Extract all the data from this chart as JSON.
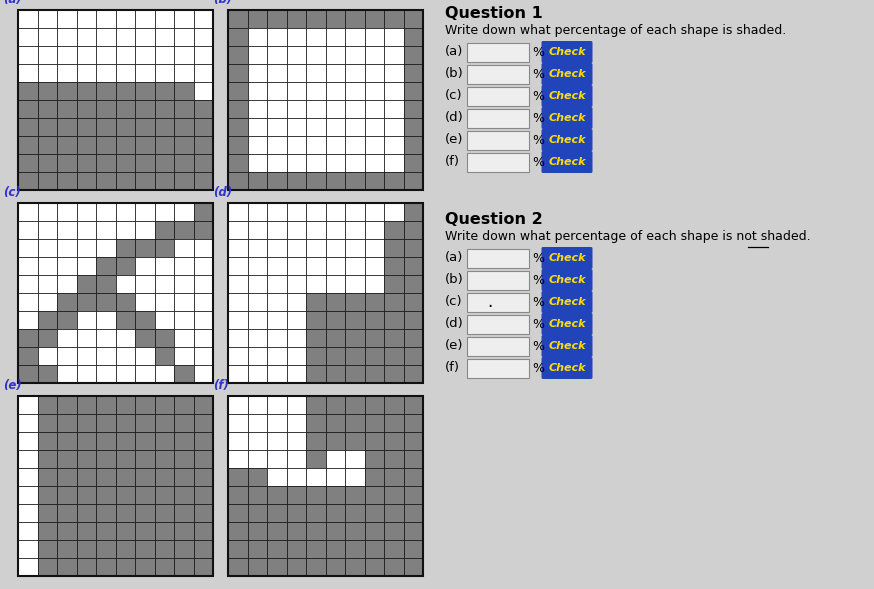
{
  "bg_color": "#d0d0d0",
  "shaded_color": "#808080",
  "white_color": "#ffffff",
  "grid_border_color": "#111111",
  "label_color": "#3333cc",
  "check_bg": "#2244bb",
  "check_text": "#ffdd00",
  "grids": {
    "a": [
      [
        0,
        0,
        0,
        0,
        0,
        0,
        0,
        0,
        0,
        0
      ],
      [
        0,
        0,
        0,
        0,
        0,
        0,
        0,
        0,
        0,
        0
      ],
      [
        0,
        0,
        0,
        0,
        0,
        0,
        0,
        0,
        0,
        0
      ],
      [
        0,
        0,
        0,
        0,
        0,
        0,
        0,
        0,
        0,
        0
      ],
      [
        1,
        1,
        1,
        1,
        1,
        1,
        1,
        1,
        1,
        0
      ],
      [
        1,
        1,
        1,
        1,
        1,
        1,
        1,
        1,
        1,
        1
      ],
      [
        1,
        1,
        1,
        1,
        1,
        1,
        1,
        1,
        1,
        1
      ],
      [
        1,
        1,
        1,
        1,
        1,
        1,
        1,
        1,
        1,
        1
      ],
      [
        1,
        1,
        1,
        1,
        1,
        1,
        1,
        1,
        1,
        1
      ],
      [
        1,
        1,
        1,
        1,
        1,
        1,
        1,
        1,
        1,
        1
      ]
    ],
    "b": [
      [
        1,
        1,
        1,
        1,
        1,
        1,
        1,
        1,
        1,
        1
      ],
      [
        1,
        0,
        0,
        0,
        0,
        0,
        0,
        0,
        0,
        1
      ],
      [
        1,
        0,
        0,
        0,
        0,
        0,
        0,
        0,
        0,
        1
      ],
      [
        1,
        0,
        0,
        0,
        0,
        0,
        0,
        0,
        0,
        1
      ],
      [
        1,
        0,
        0,
        0,
        0,
        0,
        0,
        0,
        0,
        1
      ],
      [
        1,
        0,
        0,
        0,
        0,
        0,
        0,
        0,
        0,
        1
      ],
      [
        1,
        0,
        0,
        0,
        0,
        0,
        0,
        0,
        0,
        1
      ],
      [
        1,
        0,
        0,
        0,
        0,
        0,
        0,
        0,
        0,
        1
      ],
      [
        1,
        0,
        0,
        0,
        0,
        0,
        0,
        0,
        0,
        1
      ],
      [
        1,
        1,
        1,
        1,
        1,
        1,
        1,
        1,
        1,
        1
      ]
    ],
    "c": [
      [
        0,
        0,
        0,
        0,
        0,
        0,
        0,
        0,
        0,
        1
      ],
      [
        0,
        0,
        0,
        0,
        0,
        0,
        0,
        1,
        1,
        1
      ],
      [
        0,
        0,
        0,
        0,
        0,
        1,
        1,
        1,
        0,
        0
      ],
      [
        0,
        0,
        0,
        0,
        1,
        1,
        0,
        0,
        0,
        0
      ],
      [
        0,
        0,
        0,
        1,
        1,
        0,
        0,
        0,
        0,
        0
      ],
      [
        0,
        0,
        1,
        1,
        1,
        1,
        0,
        0,
        0,
        0
      ],
      [
        0,
        1,
        1,
        0,
        0,
        1,
        1,
        0,
        0,
        0
      ],
      [
        1,
        1,
        0,
        0,
        0,
        0,
        1,
        1,
        0,
        0
      ],
      [
        1,
        0,
        0,
        0,
        0,
        0,
        0,
        1,
        0,
        0
      ],
      [
        1,
        1,
        0,
        0,
        0,
        0,
        0,
        0,
        1,
        0
      ]
    ],
    "d": [
      [
        0,
        0,
        0,
        0,
        0,
        0,
        0,
        0,
        0,
        1
      ],
      [
        0,
        0,
        0,
        0,
        0,
        0,
        0,
        0,
        1,
        1
      ],
      [
        0,
        0,
        0,
        0,
        0,
        0,
        0,
        0,
        1,
        1
      ],
      [
        0,
        0,
        0,
        0,
        0,
        0,
        0,
        0,
        1,
        1
      ],
      [
        0,
        0,
        0,
        0,
        0,
        0,
        0,
        0,
        1,
        1
      ],
      [
        0,
        0,
        0,
        0,
        1,
        1,
        1,
        1,
        1,
        1
      ],
      [
        0,
        0,
        0,
        0,
        1,
        1,
        1,
        1,
        1,
        1
      ],
      [
        0,
        0,
        0,
        0,
        1,
        1,
        1,
        1,
        1,
        1
      ],
      [
        0,
        0,
        0,
        0,
        1,
        1,
        1,
        1,
        1,
        1
      ],
      [
        0,
        0,
        0,
        0,
        1,
        1,
        1,
        1,
        1,
        1
      ]
    ],
    "e": [
      [
        0,
        1,
        1,
        1,
        1,
        1,
        1,
        1,
        1,
        1
      ],
      [
        0,
        1,
        1,
        1,
        1,
        1,
        1,
        1,
        1,
        1
      ],
      [
        0,
        1,
        1,
        1,
        1,
        1,
        1,
        1,
        1,
        1
      ],
      [
        0,
        1,
        1,
        1,
        1,
        1,
        1,
        1,
        1,
        1
      ],
      [
        0,
        1,
        1,
        1,
        1,
        1,
        1,
        1,
        1,
        1
      ],
      [
        0,
        1,
        1,
        1,
        1,
        1,
        1,
        1,
        1,
        1
      ],
      [
        0,
        1,
        1,
        1,
        1,
        1,
        1,
        1,
        1,
        1
      ],
      [
        0,
        1,
        1,
        1,
        1,
        1,
        1,
        1,
        1,
        1
      ],
      [
        0,
        1,
        1,
        1,
        1,
        1,
        1,
        1,
        1,
        1
      ],
      [
        0,
        1,
        1,
        1,
        1,
        1,
        1,
        1,
        1,
        1
      ]
    ],
    "f": [
      [
        0,
        0,
        0,
        0,
        1,
        1,
        1,
        1,
        1,
        1
      ],
      [
        0,
        0,
        0,
        0,
        1,
        1,
        1,
        1,
        1,
        1
      ],
      [
        0,
        0,
        0,
        0,
        1,
        1,
        1,
        1,
        1,
        1
      ],
      [
        0,
        0,
        0,
        0,
        1,
        0,
        0,
        1,
        1,
        1
      ],
      [
        1,
        1,
        0,
        0,
        0,
        0,
        0,
        1,
        1,
        1
      ],
      [
        1,
        1,
        1,
        1,
        1,
        1,
        1,
        1,
        1,
        1
      ],
      [
        1,
        1,
        1,
        1,
        1,
        1,
        1,
        1,
        1,
        1
      ],
      [
        1,
        1,
        1,
        1,
        1,
        1,
        1,
        1,
        1,
        1
      ],
      [
        1,
        1,
        1,
        1,
        1,
        1,
        1,
        1,
        1,
        1
      ],
      [
        1,
        1,
        1,
        1,
        1,
        1,
        1,
        1,
        1,
        1
      ]
    ]
  }
}
